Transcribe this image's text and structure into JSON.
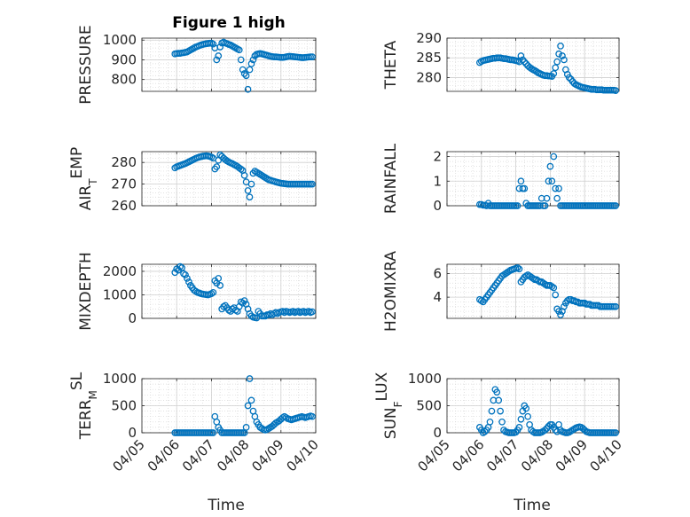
{
  "figure_title": "Figure 1 high",
  "x_axis_label": "Time",
  "marker_color": "#0072bd",
  "x_tick_labels": [
    "04/05",
    "04/06",
    "04/07",
    "04/08",
    "04/09",
    "04/10"
  ],
  "chart_data": [
    {
      "type": "scatter",
      "ylabel": "PRESSURE",
      "ylim": [
        740,
        1010
      ],
      "yticks": [
        800,
        900,
        1000
      ],
      "grid": true,
      "x": [
        0.95,
        1.0,
        1.05,
        1.1,
        1.15,
        1.2,
        1.25,
        1.3,
        1.35,
        1.4,
        1.45,
        1.5,
        1.55,
        1.6,
        1.65,
        1.7,
        1.75,
        1.8,
        1.85,
        1.9,
        1.95,
        2.0,
        2.05,
        2.1,
        2.15,
        2.2,
        2.25,
        2.3,
        2.35,
        2.4,
        2.45,
        2.5,
        2.55,
        2.6,
        2.65,
        2.7,
        2.75,
        2.8,
        2.85,
        2.9,
        2.95,
        3.0,
        3.05,
        3.1,
        3.15,
        3.2,
        3.25,
        3.3,
        3.35,
        3.4,
        3.45,
        3.5,
        3.55,
        3.6,
        3.65,
        3.7,
        3.75,
        3.8,
        3.85,
        3.9,
        3.95,
        4.0,
        4.05,
        4.1,
        4.15,
        4.2,
        4.25,
        4.3,
        4.35,
        4.4,
        4.45,
        4.5,
        4.55,
        4.6,
        4.65,
        4.7,
        4.75,
        4.8,
        4.85,
        4.9
      ],
      "y": [
        930,
        932,
        933,
        933,
        935,
        936,
        938,
        940,
        945,
        950,
        955,
        960,
        965,
        968,
        972,
        975,
        978,
        980,
        982,
        983,
        984,
        985,
        980,
        960,
        900,
        920,
        965,
        985,
        990,
        985,
        982,
        978,
        975,
        970,
        965,
        960,
        955,
        950,
        900,
        850,
        830,
        820,
        750,
        850,
        880,
        900,
        920,
        928,
        930,
        932,
        930,
        928,
        925,
        923,
        920,
        918,
        916,
        915,
        915,
        914,
        913,
        912,
        912,
        913,
        915,
        917,
        918,
        917,
        916,
        915,
        914,
        913,
        912,
        911,
        911,
        912,
        913,
        914,
        915,
        915
      ]
    },
    {
      "type": "scatter",
      "ylabel": "THETA",
      "ylim": [
        276.5,
        290
      ],
      "yticks": [
        280,
        285,
        290
      ],
      "grid": true,
      "x": [
        0.95,
        1.0,
        1.05,
        1.1,
        1.15,
        1.2,
        1.25,
        1.3,
        1.35,
        1.4,
        1.45,
        1.5,
        1.55,
        1.6,
        1.65,
        1.7,
        1.75,
        1.8,
        1.85,
        1.9,
        1.95,
        2.0,
        2.05,
        2.1,
        2.15,
        2.2,
        2.25,
        2.3,
        2.35,
        2.4,
        2.45,
        2.5,
        2.55,
        2.6,
        2.65,
        2.7,
        2.75,
        2.8,
        2.85,
        2.9,
        2.95,
        3.0,
        3.05,
        3.1,
        3.15,
        3.2,
        3.25,
        3.3,
        3.35,
        3.4,
        3.45,
        3.5,
        3.55,
        3.6,
        3.65,
        3.7,
        3.75,
        3.8,
        3.85,
        3.9,
        3.95,
        4.0,
        4.05,
        4.1,
        4.15,
        4.2,
        4.25,
        4.3,
        4.35,
        4.4,
        4.45,
        4.5,
        4.55,
        4.6,
        4.65,
        4.7,
        4.75,
        4.8,
        4.85,
        4.9
      ],
      "y": [
        283.8,
        284.1,
        284.3,
        284.4,
        284.5,
        284.6,
        284.7,
        284.8,
        284.9,
        284.9,
        285.0,
        285.0,
        285.0,
        284.9,
        284.8,
        284.8,
        284.7,
        284.6,
        284.5,
        284.5,
        284.4,
        284.3,
        284.2,
        284.0,
        285.5,
        284.5,
        284.0,
        283.5,
        283.0,
        282.6,
        282.3,
        282.0,
        281.8,
        281.5,
        281.2,
        281.0,
        280.8,
        280.6,
        280.5,
        280.5,
        280.4,
        280.4,
        280.3,
        281.0,
        282.5,
        284.0,
        286.0,
        288.0,
        285.5,
        284.5,
        282.0,
        280.8,
        280.0,
        279.6,
        279.0,
        278.5,
        278.2,
        278.0,
        277.8,
        277.6,
        277.5,
        277.4,
        277.3,
        277.2,
        277.1,
        277.0,
        277.0,
        277.0,
        276.9,
        276.9,
        276.9,
        276.9,
        276.8,
        276.8,
        276.8,
        276.8,
        276.8,
        276.8,
        276.8,
        276.7
      ]
    },
    {
      "type": "scatter",
      "ylabel": "AIR_TEMP",
      "ylim": [
        260,
        285
      ],
      "yticks": [
        260,
        270,
        280
      ],
      "grid": true,
      "x": [
        0.95,
        1.0,
        1.05,
        1.1,
        1.15,
        1.2,
        1.25,
        1.3,
        1.35,
        1.4,
        1.45,
        1.5,
        1.55,
        1.6,
        1.65,
        1.7,
        1.75,
        1.8,
        1.85,
        1.9,
        1.95,
        2.0,
        2.05,
        2.1,
        2.15,
        2.2,
        2.25,
        2.3,
        2.35,
        2.4,
        2.45,
        2.5,
        2.55,
        2.6,
        2.65,
        2.7,
        2.75,
        2.8,
        2.85,
        2.9,
        2.95,
        3.0,
        3.05,
        3.1,
        3.15,
        3.2,
        3.25,
        3.3,
        3.35,
        3.4,
        3.45,
        3.5,
        3.55,
        3.6,
        3.65,
        3.7,
        3.75,
        3.8,
        3.85,
        3.9,
        3.95,
        4.0,
        4.05,
        4.1,
        4.15,
        4.2,
        4.25,
        4.3,
        4.35,
        4.4,
        4.45,
        4.5,
        4.55,
        4.6,
        4.65,
        4.7,
        4.75,
        4.8,
        4.85,
        4.9
      ],
      "y": [
        277.5,
        278.0,
        278.3,
        278.6,
        278.9,
        279.2,
        279.5,
        279.9,
        280.3,
        280.7,
        281.1,
        281.5,
        281.9,
        282.2,
        282.5,
        282.7,
        282.9,
        283.0,
        283.1,
        283.0,
        282.8,
        282.5,
        282.0,
        277.0,
        278.0,
        281.0,
        283.5,
        282.8,
        282.0,
        281.3,
        280.7,
        280.2,
        279.8,
        279.5,
        279.0,
        278.6,
        278.1,
        277.5,
        276.9,
        276.3,
        274.0,
        271.0,
        267.0,
        264.0,
        270.0,
        275.0,
        276.0,
        275.5,
        275.0,
        274.5,
        274.0,
        273.5,
        273.0,
        272.5,
        272.0,
        271.8,
        271.5,
        271.3,
        271.0,
        270.8,
        270.6,
        270.4,
        270.3,
        270.2,
        270.1,
        270.0,
        270.0,
        270.0,
        270.0,
        270.0,
        270.0,
        270.0,
        270.0,
        270.0,
        270.0,
        270.0,
        270.0,
        270.0,
        270.0,
        270.0
      ]
    },
    {
      "type": "scatter",
      "ylabel": "RAINFALL",
      "ylim": [
        0,
        2.2
      ],
      "yticks": [
        0,
        1,
        2
      ],
      "grid": true,
      "x": [
        0.95,
        1.0,
        1.05,
        1.1,
        1.15,
        1.2,
        1.25,
        1.3,
        1.35,
        1.4,
        1.45,
        1.5,
        1.55,
        1.6,
        1.65,
        1.7,
        1.75,
        1.8,
        1.85,
        1.9,
        1.95,
        2.0,
        2.05,
        2.1,
        2.15,
        2.2,
        2.25,
        2.3,
        2.35,
        2.4,
        2.45,
        2.5,
        2.55,
        2.6,
        2.65,
        2.7,
        2.75,
        2.8,
        2.85,
        2.9,
        2.95,
        3.0,
        3.05,
        3.1,
        3.15,
        3.2,
        3.25,
        3.3,
        3.35,
        3.4,
        3.45,
        3.5,
        3.55,
        3.6,
        3.65,
        3.7,
        3.75,
        3.8,
        3.85,
        3.9,
        3.95,
        4.0,
        4.05,
        4.1,
        4.15,
        4.2,
        4.25,
        4.3,
        4.35,
        4.4,
        4.45,
        4.5,
        4.55,
        4.6,
        4.65,
        4.7,
        4.75,
        4.8,
        4.85,
        4.9
      ],
      "y": [
        0.05,
        0.05,
        0.02,
        0.02,
        0.0,
        0.1,
        0.0,
        0.0,
        0.0,
        0.0,
        0.0,
        0.0,
        0.0,
        0.0,
        0.0,
        0.0,
        0.0,
        0.0,
        0.0,
        0.0,
        0.0,
        0.0,
        0.0,
        0.7,
        1.0,
        0.7,
        0.7,
        0.1,
        0.0,
        0.0,
        0.0,
        0.0,
        0.0,
        0.0,
        0.0,
        0.0,
        0.3,
        0.0,
        0.0,
        0.3,
        1.0,
        1.6,
        1.0,
        2.0,
        0.7,
        0.3,
        0.7,
        0.0,
        0.0,
        0.0,
        0.0,
        0.0,
        0.0,
        0.0,
        0.0,
        0.0,
        0.0,
        0.0,
        0.0,
        0.0,
        0.0,
        0.0,
        0.0,
        0.0,
        0.0,
        0.0,
        0.0,
        0.0,
        0.0,
        0.0,
        0.0,
        0.0,
        0.0,
        0.0,
        0.0,
        0.0,
        0.0,
        0.0,
        0.0,
        0.0
      ]
    },
    {
      "type": "scatter",
      "ylabel": "MIXDEPTH",
      "ylim": [
        0,
        2300
      ],
      "yticks": [
        0,
        1000,
        2000
      ],
      "grid": true,
      "x": [
        0.95,
        1.0,
        1.05,
        1.1,
        1.15,
        1.2,
        1.25,
        1.3,
        1.35,
        1.4,
        1.45,
        1.5,
        1.55,
        1.6,
        1.65,
        1.7,
        1.75,
        1.8,
        1.85,
        1.9,
        1.95,
        2.0,
        2.05,
        2.1,
        2.15,
        2.2,
        2.25,
        2.3,
        2.35,
        2.4,
        2.45,
        2.5,
        2.55,
        2.6,
        2.65,
        2.7,
        2.75,
        2.8,
        2.85,
        2.9,
        2.95,
        3.0,
        3.05,
        3.1,
        3.15,
        3.2,
        3.25,
        3.3,
        3.35,
        3.4,
        3.45,
        3.5,
        3.55,
        3.6,
        3.65,
        3.7,
        3.75,
        3.8,
        3.85,
        3.9,
        3.95,
        4.0,
        4.05,
        4.1,
        4.15,
        4.2,
        4.25,
        4.3,
        4.35,
        4.4,
        4.45,
        4.5,
        4.55,
        4.6,
        4.65,
        4.7,
        4.75,
        4.8,
        4.85,
        4.9
      ],
      "y": [
        1950,
        2100,
        2050,
        2200,
        2150,
        1900,
        1850,
        1700,
        1550,
        1400,
        1300,
        1200,
        1150,
        1100,
        1080,
        1050,
        1030,
        1020,
        1010,
        1000,
        1020,
        1050,
        1100,
        1600,
        1500,
        1700,
        1400,
        400,
        500,
        550,
        450,
        350,
        300,
        400,
        450,
        350,
        300,
        500,
        700,
        650,
        750,
        600,
        400,
        200,
        100,
        50,
        30,
        20,
        300,
        200,
        100,
        100,
        100,
        150,
        150,
        200,
        150,
        200,
        250,
        200,
        250,
        280,
        300,
        250,
        300,
        280,
        250,
        280,
        300,
        250,
        280,
        300,
        250,
        280,
        300,
        250,
        280,
        300,
        250,
        280
      ]
    },
    {
      "type": "scatter",
      "ylabel": "H2OMIXRA",
      "ylim": [
        2.2,
        6.8
      ],
      "yticks": [
        4,
        6
      ],
      "grid": true,
      "x": [
        0.95,
        1.0,
        1.05,
        1.1,
        1.15,
        1.2,
        1.25,
        1.3,
        1.35,
        1.4,
        1.45,
        1.5,
        1.55,
        1.6,
        1.65,
        1.7,
        1.75,
        1.8,
        1.85,
        1.9,
        1.95,
        2.0,
        2.05,
        2.1,
        2.15,
        2.2,
        2.25,
        2.3,
        2.35,
        2.4,
        2.45,
        2.5,
        2.55,
        2.6,
        2.65,
        2.7,
        2.75,
        2.8,
        2.85,
        2.9,
        2.95,
        3.0,
        3.05,
        3.1,
        3.15,
        3.2,
        3.25,
        3.3,
        3.35,
        3.4,
        3.45,
        3.5,
        3.55,
        3.6,
        3.65,
        3.7,
        3.75,
        3.8,
        3.85,
        3.9,
        3.95,
        4.0,
        4.05,
        4.1,
        4.15,
        4.2,
        4.25,
        4.3,
        4.35,
        4.4,
        4.45,
        4.5,
        4.55,
        4.6,
        4.65,
        4.7,
        4.75,
        4.8,
        4.85,
        4.9
      ],
      "y": [
        3.8,
        3.7,
        3.6,
        3.8,
        4.0,
        4.2,
        4.4,
        4.6,
        4.8,
        5.0,
        5.2,
        5.4,
        5.6,
        5.8,
        5.9,
        6.0,
        6.1,
        6.2,
        6.3,
        6.35,
        6.4,
        6.45,
        6.5,
        6.4,
        5.3,
        5.5,
        5.7,
        5.8,
        5.9,
        5.8,
        5.7,
        5.6,
        5.5,
        5.5,
        5.4,
        5.3,
        5.3,
        5.2,
        5.1,
        5.0,
        5.0,
        5.0,
        4.9,
        4.8,
        4.2,
        3.0,
        2.8,
        2.5,
        2.8,
        3.2,
        3.5,
        3.7,
        3.8,
        3.8,
        3.7,
        3.7,
        3.6,
        3.6,
        3.5,
        3.5,
        3.5,
        3.5,
        3.4,
        3.4,
        3.4,
        3.3,
        3.3,
        3.3,
        3.3,
        3.3,
        3.2,
        3.2,
        3.2,
        3.2,
        3.2,
        3.2,
        3.2,
        3.2,
        3.2,
        3.2
      ]
    },
    {
      "type": "scatter",
      "ylabel": "TERR_MSL",
      "ylim": [
        0,
        1000
      ],
      "yticks": [
        0,
        500,
        1000
      ],
      "grid": true,
      "x": [
        0.95,
        1.0,
        1.05,
        1.1,
        1.15,
        1.2,
        1.25,
        1.3,
        1.35,
        1.4,
        1.45,
        1.5,
        1.55,
        1.6,
        1.65,
        1.7,
        1.75,
        1.8,
        1.85,
        1.9,
        1.95,
        2.0,
        2.05,
        2.1,
        2.15,
        2.2,
        2.25,
        2.3,
        2.35,
        2.4,
        2.45,
        2.5,
        2.55,
        2.6,
        2.65,
        2.7,
        2.75,
        2.8,
        2.85,
        2.9,
        2.95,
        3.0,
        3.05,
        3.1,
        3.15,
        3.2,
        3.25,
        3.3,
        3.35,
        3.4,
        3.45,
        3.5,
        3.55,
        3.6,
        3.65,
        3.7,
        3.75,
        3.8,
        3.85,
        3.9,
        3.95,
        4.0,
        4.05,
        4.1,
        4.15,
        4.2,
        4.25,
        4.3,
        4.35,
        4.4,
        4.45,
        4.5,
        4.55,
        4.6,
        4.65,
        4.7,
        4.75,
        4.8,
        4.85,
        4.9
      ],
      "y": [
        0,
        0,
        0,
        0,
        0,
        0,
        0,
        0,
        0,
        0,
        0,
        0,
        0,
        0,
        0,
        0,
        0,
        0,
        0,
        0,
        0,
        0,
        0,
        300,
        200,
        100,
        50,
        0,
        0,
        0,
        0,
        0,
        0,
        0,
        0,
        0,
        0,
        0,
        0,
        0,
        0,
        100,
        500,
        1000,
        600,
        400,
        300,
        200,
        150,
        100,
        80,
        60,
        50,
        60,
        80,
        100,
        120,
        150,
        180,
        200,
        220,
        250,
        280,
        300,
        280,
        260,
        250,
        240,
        250,
        260,
        270,
        280,
        290,
        300,
        290,
        280,
        290,
        300,
        310,
        300
      ]
    },
    {
      "type": "scatter",
      "ylabel": "SUN_FLUX",
      "ylim": [
        0,
        1000
      ],
      "yticks": [
        0,
        500,
        1000
      ],
      "grid": true,
      "x": [
        0.95,
        1.0,
        1.05,
        1.1,
        1.15,
        1.2,
        1.25,
        1.3,
        1.35,
        1.4,
        1.45,
        1.5,
        1.55,
        1.6,
        1.65,
        1.7,
        1.75,
        1.8,
        1.85,
        1.9,
        1.95,
        2.0,
        2.05,
        2.1,
        2.15,
        2.2,
        2.25,
        2.3,
        2.35,
        2.4,
        2.45,
        2.5,
        2.55,
        2.6,
        2.65,
        2.7,
        2.75,
        2.8,
        2.85,
        2.9,
        2.95,
        3.0,
        3.05,
        3.1,
        3.15,
        3.2,
        3.25,
        3.3,
        3.35,
        3.4,
        3.45,
        3.5,
        3.55,
        3.6,
        3.65,
        3.7,
        3.75,
        3.8,
        3.85,
        3.9,
        3.95,
        4.0,
        4.05,
        4.1,
        4.15,
        4.2,
        4.25,
        4.3,
        4.35,
        4.4,
        4.45,
        4.5,
        4.55,
        4.6,
        4.65,
        4.7,
        4.75,
        4.8,
        4.85,
        4.9
      ],
      "y": [
        100,
        50,
        0,
        20,
        50,
        100,
        200,
        400,
        600,
        800,
        750,
        600,
        400,
        200,
        50,
        20,
        10,
        0,
        0,
        0,
        0,
        10,
        50,
        100,
        250,
        400,
        500,
        450,
        300,
        150,
        50,
        20,
        0,
        0,
        0,
        0,
        10,
        30,
        50,
        80,
        120,
        150,
        150,
        100,
        50,
        20,
        150,
        50,
        20,
        10,
        0,
        0,
        10,
        30,
        50,
        70,
        90,
        100,
        110,
        100,
        80,
        50,
        20,
        10,
        0,
        0,
        0,
        0,
        0,
        0,
        0,
        0,
        0,
        0,
        0,
        0,
        0,
        0,
        0,
        0
      ]
    }
  ]
}
